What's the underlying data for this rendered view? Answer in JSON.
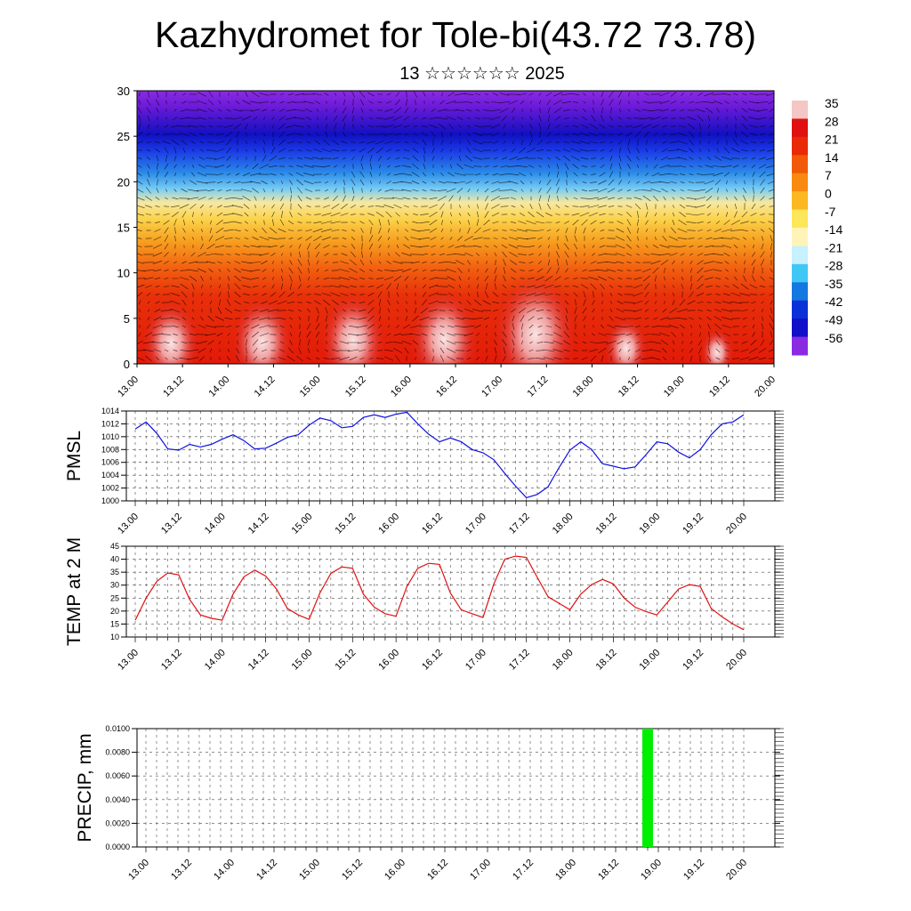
{
  "title": "Kazhydromet for Tole-bi(43.72 73.78)",
  "subtitle": "13 ☆☆☆☆☆☆ 2025",
  "chart_data": [
    {
      "type": "heatmap",
      "name": "cross-section",
      "ylim": [
        0,
        30
      ],
      "yticks": [
        0,
        5,
        10,
        15,
        20,
        25,
        30
      ],
      "xticks": [
        "13.00",
        "13.12",
        "14.00",
        "14.12",
        "15.00",
        "15.12",
        "16.00",
        "16.12",
        "17.00",
        "17.12",
        "18.00",
        "18.12",
        "19.00",
        "19.12",
        "20.00"
      ],
      "colorbar_labels": [
        "35",
        "28",
        "21",
        "14",
        "7",
        "0",
        "-7",
        "-14",
        "-21",
        "-28",
        "-35",
        "-42",
        "-49",
        "-56"
      ],
      "colorbar_colors": [
        "#f4c6c6",
        "#e01010",
        "#e82a08",
        "#f05a08",
        "#f88a10",
        "#fbb820",
        "#fde65a",
        "#fff4b8",
        "#c8f0ff",
        "#40c8f4",
        "#1478e0",
        "#0a30d8",
        "#1010c8",
        "#8a2be2"
      ],
      "surface_maxima_days": [
        "13.06",
        "14.06",
        "15.06",
        "16.06",
        "17.06",
        "18.06",
        "19.06"
      ],
      "has_wind_vectors": true
    },
    {
      "type": "line",
      "ylabel": "PMSL",
      "ylim": [
        1000,
        1014
      ],
      "yticks": [
        "1000",
        "1002",
        "1004",
        "1006",
        "1008",
        "1010",
        "1012",
        "1014"
      ],
      "xticks": [
        "13.00",
        "13.12",
        "14.00",
        "14.12",
        "15.00",
        "15.12",
        "16.00",
        "16.12",
        "17.00",
        "17.12",
        "18.00",
        "18.12",
        "19.00",
        "19.12",
        "20.00"
      ],
      "x_step_hours": 3,
      "color": "#1010e0",
      "grid": true,
      "values": [
        1011.2,
        1012.3,
        1010.5,
        1008.1,
        1007.9,
        1008.8,
        1008.4,
        1008.8,
        1009.6,
        1010.3,
        1009.4,
        1008.1,
        1008.2,
        1009.0,
        1009.9,
        1010.3,
        1011.8,
        1012.9,
        1012.5,
        1011.4,
        1011.6,
        1013.0,
        1013.4,
        1013.0,
        1013.5,
        1013.8,
        1012.0,
        1010.4,
        1009.2,
        1009.8,
        1009.2,
        1008.0,
        1007.5,
        1006.4,
        1004.3,
        1002.3,
        1000.5,
        1001.0,
        1002.2,
        1005.2,
        1007.9,
        1009.2,
        1008.0,
        1005.8,
        1005.4,
        1005.0,
        1005.3,
        1007.2,
        1009.2,
        1008.9,
        1007.6,
        1006.7,
        1008.0,
        1010.3,
        1012.0,
        1012.3,
        1013.4
      ]
    },
    {
      "type": "line",
      "ylabel": "TEMP at 2 M",
      "ylim": [
        10,
        45
      ],
      "yticks": [
        "10",
        "15",
        "20",
        "25",
        "30",
        "35",
        "40",
        "45"
      ],
      "xticks": [
        "13.00",
        "13.12",
        "14.00",
        "14.12",
        "15.00",
        "15.12",
        "16.00",
        "16.12",
        "17.00",
        "17.12",
        "18.00",
        "18.12",
        "19.00",
        "19.12",
        "20.00"
      ],
      "x_step_hours": 3,
      "color": "#e01010",
      "grid": true,
      "values": [
        16.5,
        25.0,
        31.5,
        34.7,
        34.0,
        24.5,
        18.5,
        17.2,
        16.5,
        26.5,
        33.2,
        35.8,
        33.5,
        28.5,
        21.0,
        18.5,
        16.8,
        27.0,
        34.5,
        37.0,
        36.5,
        26.5,
        21.5,
        19.0,
        18.0,
        29.5,
        36.5,
        38.4,
        38.0,
        27.0,
        20.5,
        19.0,
        17.5,
        30.5,
        40.0,
        41.2,
        40.7,
        33.0,
        25.5,
        23.0,
        20.5,
        26.5,
        30.2,
        32.2,
        30.5,
        25.0,
        21.5,
        19.8,
        18.5,
        23.5,
        28.5,
        30.2,
        29.5,
        21.0,
        17.8,
        15.0,
        12.8
      ]
    },
    {
      "type": "bar",
      "ylabel": "PRECIP, mm",
      "ylim": [
        0,
        0.01
      ],
      "yticks": [
        "0.0000",
        "0.0020",
        "0.0040",
        "0.0060",
        "0.0080",
        "0.0100"
      ],
      "xticks": [
        "13.00",
        "13.12",
        "14.00",
        "14.12",
        "15.00",
        "15.12",
        "16.00",
        "16.12",
        "17.00",
        "17.12",
        "18.00",
        "18.12",
        "19.00",
        "19.12",
        "20.00"
      ],
      "color": "#00ee00",
      "grid": true,
      "bars": [
        {
          "x": "18.21",
          "value": 0.01
        }
      ]
    }
  ]
}
